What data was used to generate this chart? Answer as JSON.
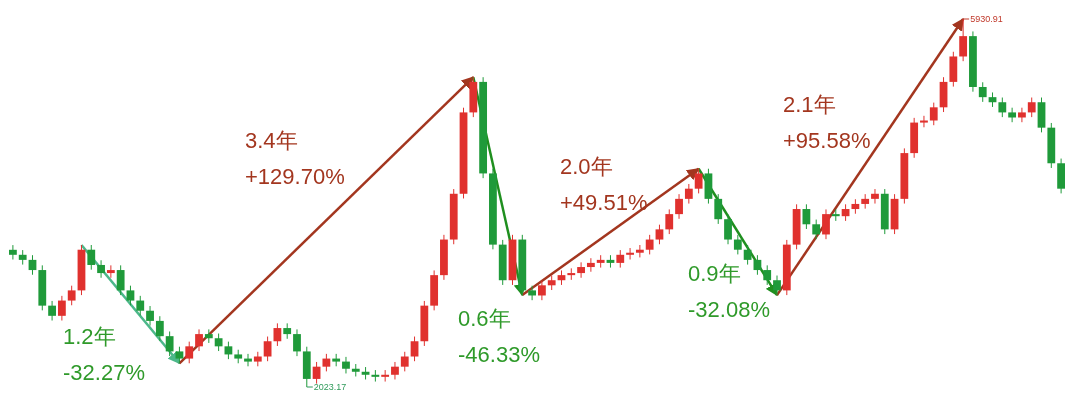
{
  "chart_data": {
    "type": "candlestick",
    "categories": [
      null,
      null,
      null,
      null,
      null,
      null,
      null,
      null,
      null,
      null,
      null,
      null,
      null,
      null,
      null,
      null,
      null,
      null,
      null,
      null,
      null,
      null,
      null,
      null,
      null,
      null,
      null,
      null,
      null,
      null,
      null,
      null,
      null,
      null,
      null,
      null,
      null,
      null,
      null,
      null,
      null,
      null,
      null,
      null,
      null,
      null,
      null,
      null,
      null,
      null,
      null,
      null,
      null,
      null,
      null,
      null,
      null,
      null,
      null,
      null,
      null,
      null,
      null,
      null,
      null,
      null,
      null,
      null,
      null,
      null,
      null,
      null,
      null,
      null,
      null,
      null,
      null,
      null,
      null,
      null,
      null,
      null,
      null,
      null,
      null,
      null,
      null,
      null,
      null,
      null,
      null,
      null,
      null,
      null,
      null,
      null,
      null,
      null,
      null,
      null,
      null,
      null,
      null,
      null,
      null,
      null,
      null,
      null
    ],
    "ohlc": [
      [
        3480,
        3530,
        3377,
        3427
      ],
      [
        3427,
        3477,
        3323,
        3373
      ],
      [
        3373,
        3423,
        3215,
        3265
      ],
      [
        3265,
        3315,
        2837,
        2887
      ],
      [
        2887,
        2937,
        2729,
        2779
      ],
      [
        2779,
        2991,
        2729,
        2941
      ],
      [
        2941,
        3099,
        2891,
        3049
      ],
      [
        3049,
        3531,
        2999,
        3481
      ],
      [
        3481,
        3531,
        3269,
        3319
      ],
      [
        3319,
        3369,
        3183,
        3233
      ],
      [
        3233,
        3315,
        3183,
        3265
      ],
      [
        3265,
        3315,
        2999,
        3049
      ],
      [
        3049,
        3099,
        2891,
        2941
      ],
      [
        2941,
        2991,
        2783,
        2833
      ],
      [
        2833,
        2883,
        2675,
        2725
      ],
      [
        2725,
        2775,
        2513,
        2563
      ],
      [
        2563,
        2613,
        2351,
        2401
      ],
      [
        2401,
        2451,
        2275,
        2325
      ],
      [
        2325,
        2505,
        2275,
        2455
      ],
      [
        2455,
        2635,
        2405,
        2585
      ],
      [
        2585,
        2635,
        2491,
        2541
      ],
      [
        2541,
        2591,
        2405,
        2455
      ],
      [
        2455,
        2505,
        2319,
        2369
      ],
      [
        2369,
        2419,
        2275,
        2325
      ],
      [
        2325,
        2375,
        2243,
        2293
      ],
      [
        2293,
        2397,
        2243,
        2347
      ],
      [
        2347,
        2559,
        2297,
        2509
      ],
      [
        2509,
        2699,
        2459,
        2649
      ],
      [
        2649,
        2699,
        2535,
        2585
      ],
      [
        2585,
        2635,
        2351,
        2401
      ],
      [
        2401,
        2451,
        2023.17,
        2109
      ],
      [
        2109,
        2289,
        2059,
        2239
      ],
      [
        2239,
        2375,
        2189,
        2325
      ],
      [
        2325,
        2375,
        2243,
        2293
      ],
      [
        2293,
        2343,
        2167,
        2217
      ],
      [
        2217,
        2267,
        2135,
        2185
      ],
      [
        2185,
        2235,
        2103,
        2153
      ],
      [
        2153,
        2203,
        2081,
        2131
      ],
      [
        2131,
        2203,
        2081,
        2153
      ],
      [
        2153,
        2289,
        2103,
        2239
      ],
      [
        2239,
        2397,
        2189,
        2347
      ],
      [
        2347,
        2559,
        2297,
        2509
      ],
      [
        2509,
        2937,
        2459,
        2887
      ],
      [
        2887,
        3261,
        2837,
        3211
      ],
      [
        3211,
        3639,
        3161,
        3589
      ],
      [
        3589,
        4125,
        3539,
        4075
      ],
      [
        4075,
        4989,
        4025,
        4939
      ],
      [
        4939,
        5313,
        4889,
        5263
      ],
      [
        5263,
        5313,
        4241,
        4291
      ],
      [
        4291,
        4341,
        3485,
        3535
      ],
      [
        3535,
        3585,
        3107,
        3157
      ],
      [
        3157,
        3639,
        3107,
        3589
      ],
      [
        3589,
        3639,
        2999,
        3049
      ],
      [
        3049,
        3099,
        2945,
        2995
      ],
      [
        2995,
        3153,
        2945,
        3103
      ],
      [
        3103,
        3207,
        3053,
        3157
      ],
      [
        3157,
        3261,
        3107,
        3211
      ],
      [
        3211,
        3283,
        3161,
        3233
      ],
      [
        3233,
        3347,
        3183,
        3297
      ],
      [
        3297,
        3391,
        3247,
        3341
      ],
      [
        3341,
        3423,
        3291,
        3373
      ],
      [
        3373,
        3423,
        3291,
        3341
      ],
      [
        3341,
        3477,
        3291,
        3427
      ],
      [
        3427,
        3499,
        3377,
        3449
      ],
      [
        3449,
        3531,
        3399,
        3481
      ],
      [
        3481,
        3639,
        3431,
        3589
      ],
      [
        3589,
        3747,
        3539,
        3697
      ],
      [
        3697,
        3909,
        3647,
        3859
      ],
      [
        3859,
        4071,
        3809,
        4021
      ],
      [
        4021,
        4179,
        3971,
        4129
      ],
      [
        4129,
        4341,
        4079,
        4291
      ],
      [
        4291,
        4341,
        3971,
        4021
      ],
      [
        4021,
        4071,
        3755,
        3805
      ],
      [
        3805,
        3855,
        3539,
        3589
      ],
      [
        3589,
        3639,
        3431,
        3481
      ],
      [
        3481,
        3531,
        3323,
        3373
      ],
      [
        3373,
        3423,
        3215,
        3265
      ],
      [
        3265,
        3315,
        3107,
        3157
      ],
      [
        3157,
        3207,
        2999,
        3049
      ],
      [
        3049,
        3585,
        2999,
        3535
      ],
      [
        3535,
        3963,
        3485,
        3913
      ],
      [
        3913,
        3963,
        3701,
        3751
      ],
      [
        3751,
        3801,
        3593,
        3643
      ],
      [
        3643,
        3909,
        3593,
        3859
      ],
      [
        3859,
        3909,
        3787,
        3837
      ],
      [
        3837,
        3963,
        3787,
        3913
      ],
      [
        3913,
        4017,
        3863,
        3967
      ],
      [
        3967,
        4071,
        3917,
        4021
      ],
      [
        4021,
        4125,
        3971,
        4075
      ],
      [
        4075,
        4125,
        3647,
        3697
      ],
      [
        3697,
        4071,
        3647,
        4021
      ],
      [
        4021,
        4557,
        3971,
        4507
      ],
      [
        4507,
        4881,
        4457,
        4831
      ],
      [
        4831,
        4903,
        4781,
        4853
      ],
      [
        4853,
        5043,
        4803,
        4993
      ],
      [
        4993,
        5313,
        4943,
        5263
      ],
      [
        5263,
        5583,
        5213,
        5533
      ],
      [
        5533,
        5930.91,
        5483,
        5749
      ],
      [
        5749,
        5799,
        5159,
        5209
      ],
      [
        5209,
        5259,
        5051,
        5101
      ],
      [
        5101,
        5151,
        4997,
        5047
      ],
      [
        5047,
        5097,
        4889,
        4939
      ],
      [
        4939,
        4989,
        4835,
        4885
      ],
      [
        4885,
        4989,
        4835,
        4939
      ],
      [
        4939,
        5097,
        4889,
        5047
      ],
      [
        5047,
        5097,
        4727,
        4777
      ],
      [
        4777,
        4827,
        4349,
        4399
      ],
      [
        4399,
        4449,
        4079,
        4129
      ]
    ],
    "annotations": [
      "1.2年\n-32.27%",
      "3.4年\n+129.70%",
      "0.6年\n-46.33%",
      "2.0年\n+49.51%",
      "0.9年\n-32.08%",
      "2.1年\n+95.58%",
      "5930.91",
      "2023.17"
    ]
  }
}
